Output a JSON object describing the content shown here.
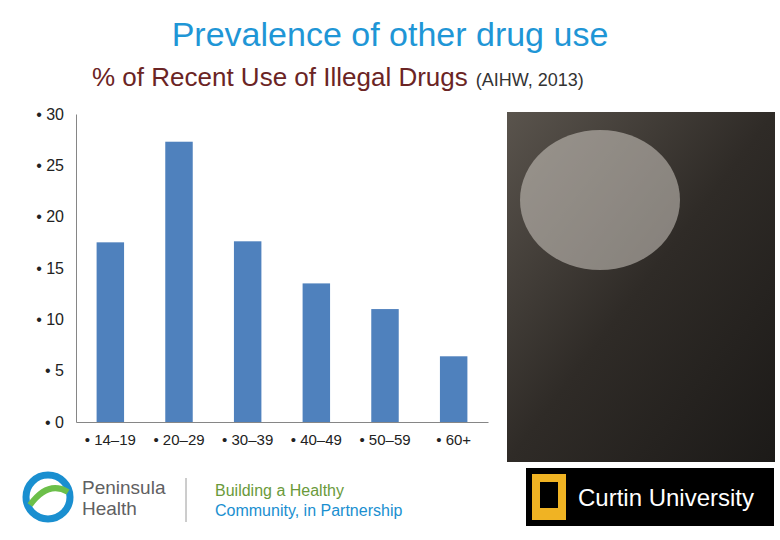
{
  "chart_data": {
    "type": "bar",
    "title": "Prevalence of other drug use",
    "subtitle": "% of Recent Use of Illegal Drugs",
    "source": "(AIHW, 2013)",
    "categories": [
      "• 14–19",
      "• 20–29",
      "• 30–39",
      "• 40–49",
      "• 50–59",
      "• 60+"
    ],
    "values": [
      17.5,
      27.3,
      17.6,
      13.5,
      11.0,
      6.4
    ],
    "color": "#4f81bd",
    "ylim": [
      0,
      30
    ],
    "yticks": [
      {
        "value": 0,
        "label": "• 0"
      },
      {
        "value": 5,
        "label": "• 5"
      },
      {
        "value": 10,
        "label": "• 10"
      },
      {
        "value": 15,
        "label": "• 15"
      },
      {
        "value": 20,
        "label": "• 20"
      },
      {
        "value": 25,
        "label": "• 25"
      },
      {
        "value": 30,
        "label": "• 30"
      }
    ],
    "grid": false
  },
  "logos": {
    "left": [
      "Peninsula",
      "Health"
    ],
    "tagline": [
      "Building a Healthy",
      "Community, in Partnership"
    ],
    "right": "Curtin University"
  }
}
